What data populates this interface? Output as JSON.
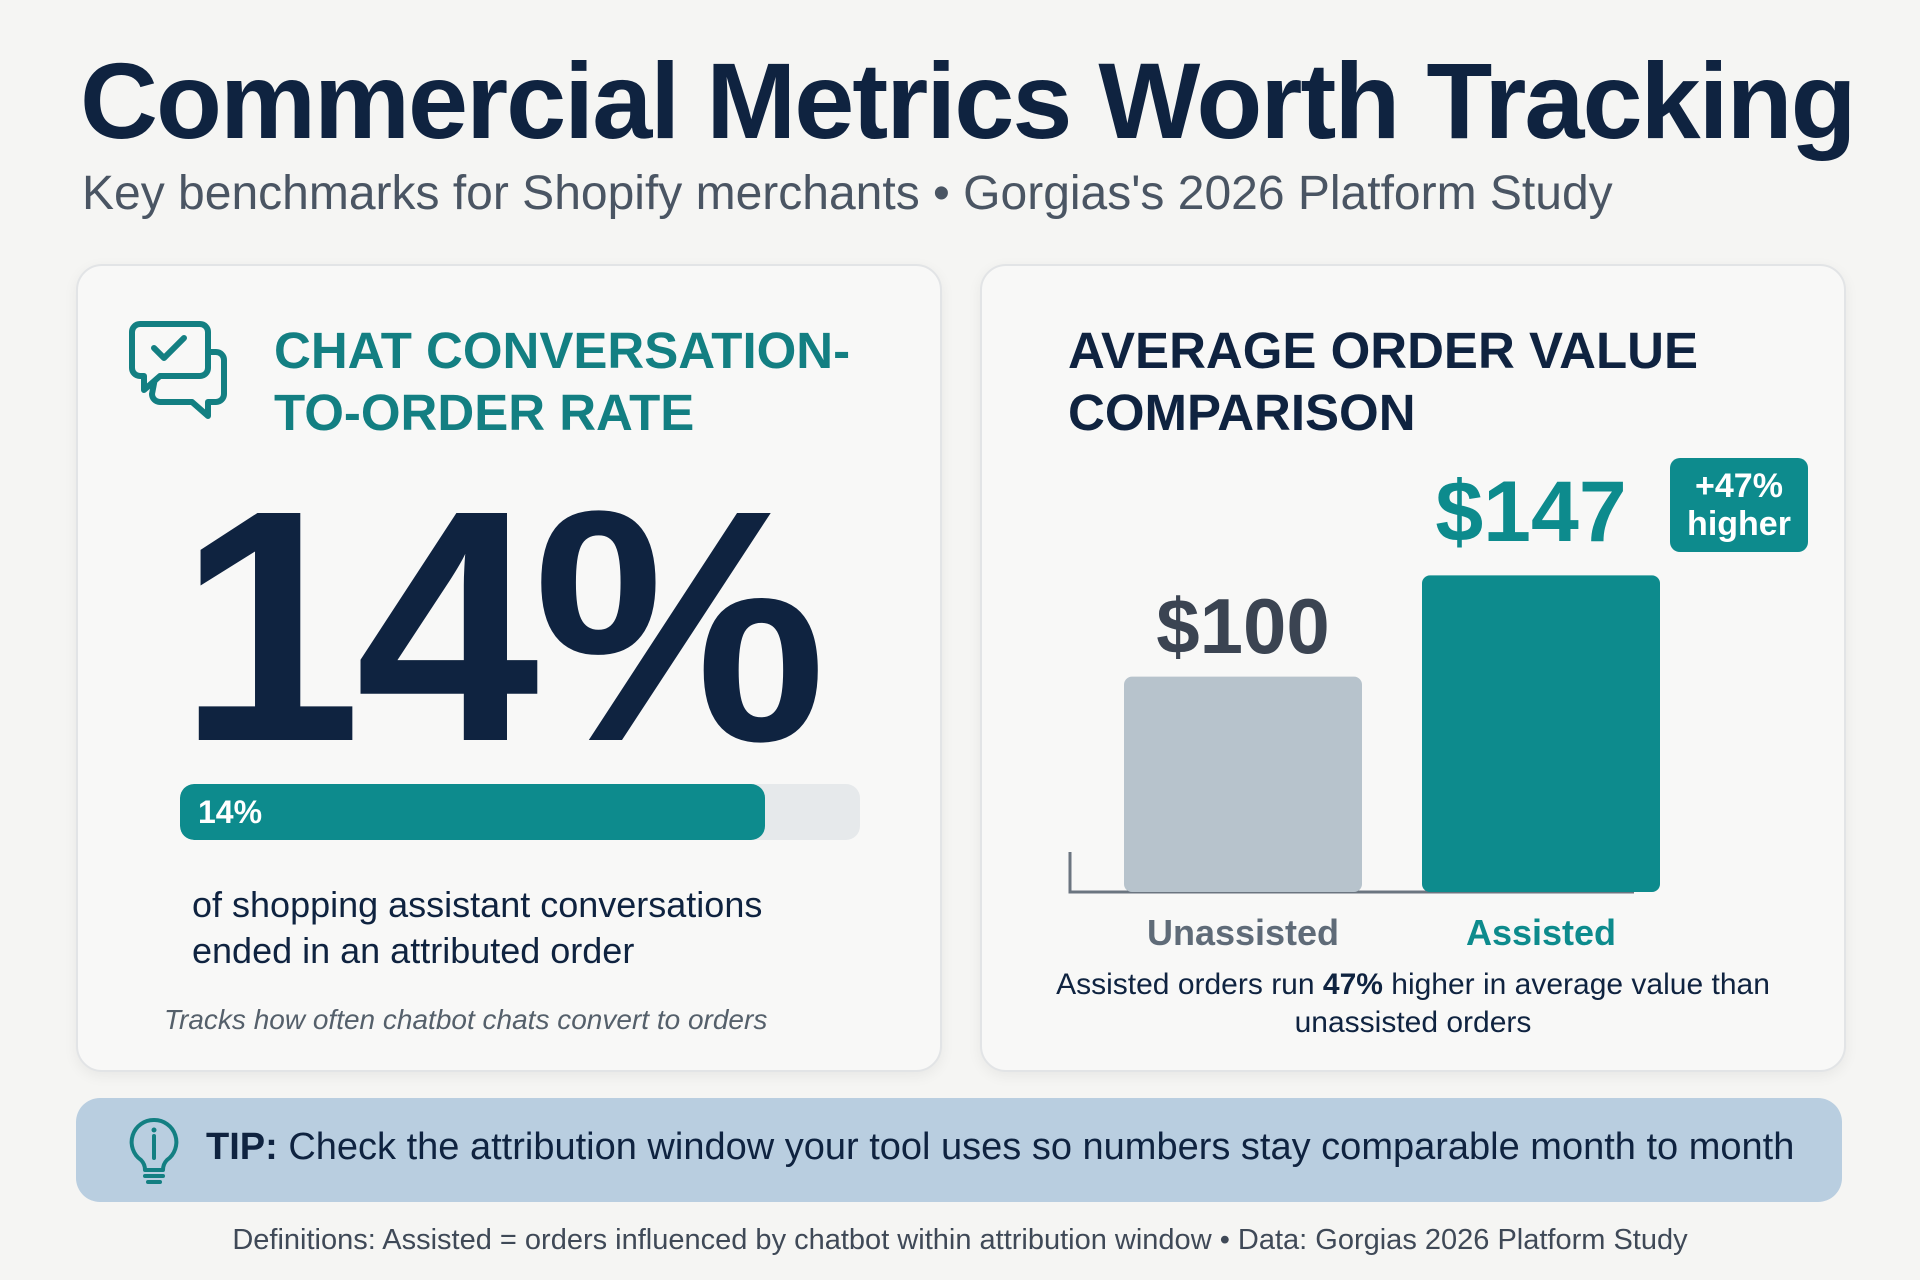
{
  "header": {
    "title": "Commercial Metrics Worth Tracking",
    "subtitle": "Key benchmarks for Shopify merchants • Gorgias's 2026 Platform Study"
  },
  "left_card": {
    "icon": "chat-check-icon",
    "heading": "CHAT CONVERSATION-TO-ORDER RATE",
    "big_number": "14%",
    "progress": {
      "label": "14%",
      "fraction": 0.86
    },
    "description": "of shopping assistant conversations ended in an attributed order",
    "note": "Tracks how often chatbot chats convert to orders"
  },
  "right_card": {
    "heading": "AVERAGE ORDER VALUE COMPARISON",
    "badge_line1": "+47%",
    "badge_line2": "higher",
    "caption_before": "Assisted orders run ",
    "caption_bold": "47%",
    "caption_after": " higher in average value than unassisted orders"
  },
  "chart_data": {
    "type": "bar",
    "title": "AVERAGE ORDER VALUE COMPARISON",
    "categories": [
      "Unassisted",
      "Assisted"
    ],
    "values": [
      100,
      147
    ],
    "value_labels": [
      "$100",
      "$147"
    ],
    "ylim": [
      0,
      195
    ],
    "colors": [
      "#b7c3cc",
      "#0d8b8d"
    ],
    "grid": false,
    "legend": "none"
  },
  "tip": {
    "icon": "lightbulb-icon",
    "prefix": "TIP:",
    "text": " Check the attribution window your tool uses so numbers stay comparable month to month"
  },
  "footer": {
    "text": "Definitions: Assisted = orders influenced by chatbot within attribution window  •  Data: Gorgias 2026 Platform Study"
  },
  "colors": {
    "navy": "#0f2340",
    "teal": "#0d8b8d",
    "gray_bar": "#b7c3cc",
    "tip_background": "#b9cee0"
  }
}
